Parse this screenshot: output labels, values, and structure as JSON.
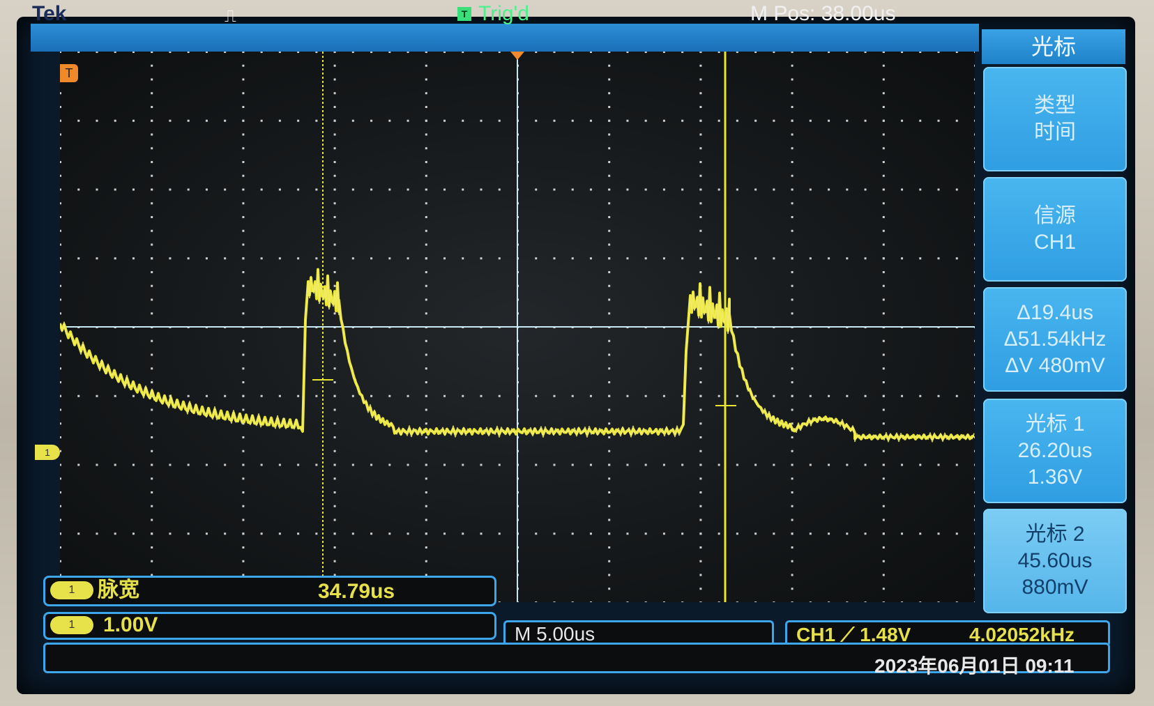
{
  "topbar": {
    "brand": "Tek",
    "trigger_icon": "pulse-icon",
    "trigger_badge": "T",
    "trigger_status": "Trig'd",
    "m_pos": "M Pos: 38.00us"
  },
  "markers": {
    "trigger_position_marker": "T",
    "channel1_level_marker": "1"
  },
  "menu": {
    "title": "光标",
    "items": [
      {
        "line1": "类型",
        "line2": "时间",
        "line3": ""
      },
      {
        "line1": "信源",
        "line2": "CH1",
        "line3": ""
      },
      {
        "line1": "Δ19.4us",
        "line2": "Δ51.54kHz",
        "line3": "ΔV 480mV"
      },
      {
        "line1": "光标 1",
        "line2": "26.20us",
        "line3": "1.36V"
      },
      {
        "line1": "光标 2",
        "line2": "45.60us",
        "line3": "880mV"
      }
    ]
  },
  "measurement": {
    "channel": "1",
    "label": "脉宽",
    "value": "34.79us"
  },
  "vertical": {
    "channel": "1",
    "scale": "1.00V"
  },
  "horizontal": {
    "scale": "M 5.00us"
  },
  "trigger": {
    "label": "CH1 ⟋ 1.48V",
    "frequency": "4.02052kHz"
  },
  "datetime": "2023年06月01日 09:11",
  "colors": {
    "waveform": "#e9e533",
    "cursor": "#e9e533",
    "grid": "#d8d8d8",
    "screen_blue": "#2a8fd8"
  }
}
